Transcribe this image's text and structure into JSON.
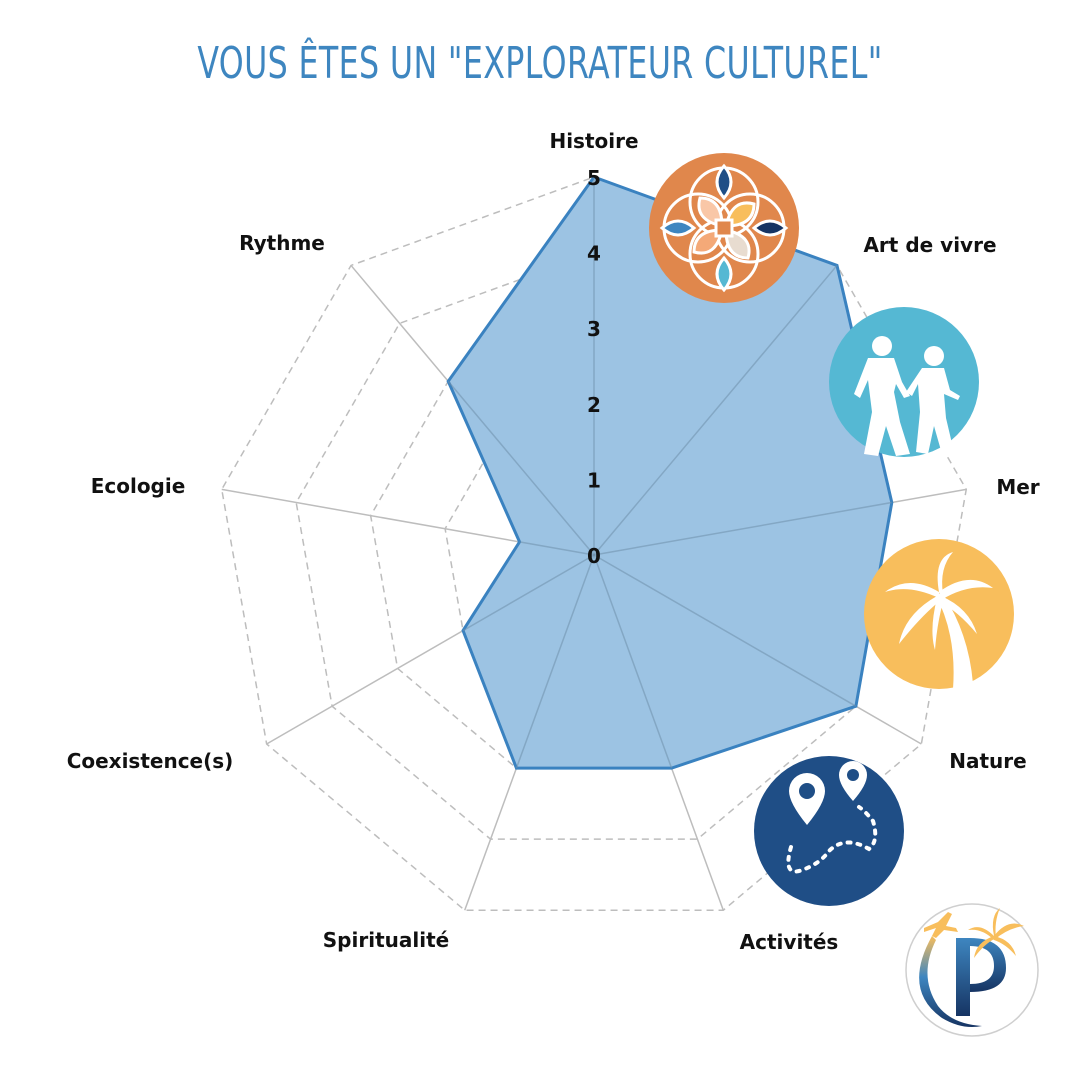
{
  "title": "VOUS ÊTES UN \"EXPLORATEUR CULTUREL\"",
  "colors": {
    "title": "#3e86c0",
    "fill": "#9cc3e3",
    "stroke": "#3a82c0",
    "grid": "#bdbdbd",
    "orange_badge": "#e0874c",
    "walkers_badge": "#55b8d3",
    "palm_badge": "#f8be5c",
    "map_badge": "#1f4e86"
  },
  "chart_data": {
    "type": "radar",
    "title": "VOUS ÊTES UN \"EXPLORATEUR CULTUREL\"",
    "categories": [
      "Histoire",
      "Art de vivre",
      "Mer",
      "Nature",
      "Activités",
      "Spiritualité",
      "Coexistence(s)",
      "Ecologie",
      "Rythme"
    ],
    "values": [
      5,
      5,
      4,
      4,
      3,
      3,
      2,
      1,
      3
    ],
    "rlim": [
      0,
      5
    ],
    "ticks": [
      "0",
      "1",
      "2",
      "3",
      "4",
      "5"
    ],
    "grid": "dashed rings, solid spokes",
    "legend": "none"
  },
  "badges": [
    {
      "name": "culture-rosette-icon"
    },
    {
      "name": "walkers-icon"
    },
    {
      "name": "palm-tree-icon"
    },
    {
      "name": "map-route-icon"
    }
  ],
  "logo": {
    "letter": "P"
  }
}
